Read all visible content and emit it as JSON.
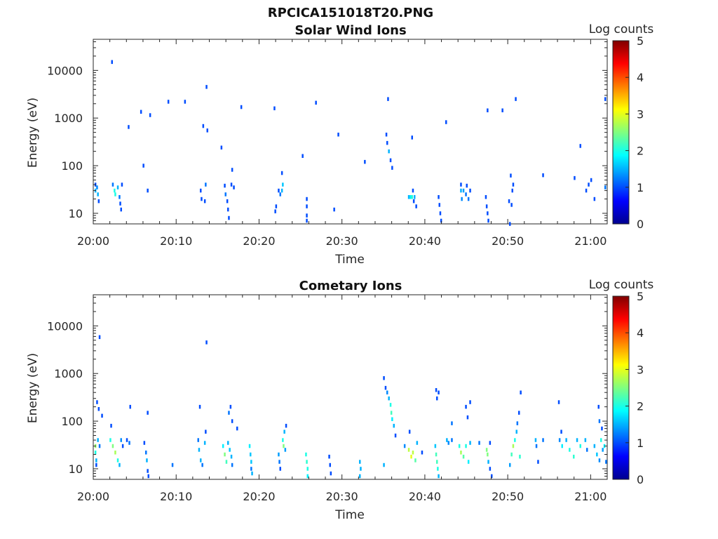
{
  "figure": {
    "title": "RPCICA151018T20.PNG"
  },
  "chart_data": [
    {
      "type": "heatmap",
      "title": "Solar Wind Ions",
      "xlabel": "Time",
      "ylabel": "Energy (eV)",
      "x_ticks": [
        "20:00",
        "20:10",
        "20:20",
        "20:30",
        "20:40",
        "20:50",
        "21:00"
      ],
      "xlim": [
        "20:00",
        "21:02"
      ],
      "y_scale": "log",
      "y_ticks": [
        10,
        100,
        1000,
        10000
      ],
      "ylim": [
        6,
        45000
      ],
      "colorbar": {
        "label": "Log counts",
        "ticks": [
          0,
          1,
          2,
          3,
          4,
          5
        ],
        "colormap": "jet"
      },
      "cells": [
        [
          "20:00.2",
          40,
          1
        ],
        [
          "20:00.2",
          30,
          1.5
        ],
        [
          "20:00.5",
          25,
          1.5
        ],
        [
          "20:00.6",
          18,
          1
        ],
        [
          "20:00.4",
          35,
          1.3
        ],
        [
          "20:02.3",
          40,
          1.2
        ],
        [
          "20:02.5",
          30,
          2
        ],
        [
          "20:02.6",
          25,
          2
        ],
        [
          "20:02.9",
          35,
          1.5
        ],
        [
          "20:03.1",
          22,
          1.2
        ],
        [
          "20:03.2",
          16,
          1
        ],
        [
          "20:03.3",
          12,
          1
        ],
        [
          "20:03.4",
          40,
          1
        ],
        [
          "20:06.5",
          30,
          1
        ],
        [
          "20:12.9",
          30,
          1
        ],
        [
          "20:13.0",
          20,
          1
        ],
        [
          "20:13.4",
          18,
          1
        ],
        [
          "20:13.5",
          40,
          1.2
        ],
        [
          "20:15.8",
          38,
          1
        ],
        [
          "20:15.9",
          25,
          1.2
        ],
        [
          "20:16.1",
          18,
          1
        ],
        [
          "20:16.2",
          12,
          1
        ],
        [
          "20:16.3",
          8,
          1
        ],
        [
          "20:16.6",
          40,
          1
        ],
        [
          "20:16.9",
          35,
          1
        ],
        [
          "20:22.3",
          30,
          1
        ],
        [
          "20:22.5",
          25,
          1.2
        ],
        [
          "20:22.7",
          30,
          1.5
        ],
        [
          "20:22.8",
          40,
          1.6
        ],
        [
          "20:22.0",
          14,
          1
        ],
        [
          "20:21.9",
          11,
          1
        ],
        [
          "20:25.7",
          20,
          1
        ],
        [
          "20:25.7",
          14,
          1
        ],
        [
          "20:25.7",
          9,
          1
        ],
        [
          "20:25.7",
          7,
          1
        ],
        [
          "20:29.0",
          12,
          1
        ],
        [
          "20:38.0",
          22,
          1.5
        ],
        [
          "20:38.2",
          22,
          1.8
        ],
        [
          "20:38.4",
          22,
          2.1
        ],
        [
          "20:38.7",
          22,
          1.5
        ],
        [
          "20:38.9",
          14,
          1
        ],
        [
          "20:38.5",
          30,
          1
        ],
        [
          "20:38.6",
          18,
          1
        ],
        [
          "20:41.6",
          22,
          1
        ],
        [
          "20:41.7",
          15,
          1
        ],
        [
          "20:41.8",
          10,
          1
        ],
        [
          "20:41.9",
          7,
          1
        ],
        [
          "20:44.3",
          40,
          1
        ],
        [
          "20:44.3",
          30,
          1.5
        ],
        [
          "20:44.4",
          20,
          1.3
        ],
        [
          "20:44.6",
          30,
          1.4
        ],
        [
          "20:44.9",
          25,
          1.2
        ],
        [
          "20:45.0",
          38,
          1
        ],
        [
          "20:45.2",
          20,
          1.2
        ],
        [
          "20:45.4",
          30,
          1
        ],
        [
          "20:47.3",
          22,
          1
        ],
        [
          "20:47.4",
          14,
          1
        ],
        [
          "20:47.5",
          10,
          1
        ],
        [
          "20:47.6",
          7,
          1
        ],
        [
          "20:50.1",
          18,
          1
        ],
        [
          "20:50.5",
          30,
          1
        ],
        [
          "20:50.6",
          40,
          1
        ],
        [
          "20:50.4",
          15,
          1
        ],
        [
          "20:59.4",
          30,
          1
        ],
        [
          "20:59.7",
          40,
          1
        ],
        [
          "21:00.4",
          20,
          1
        ],
        [
          "21:01.7",
          35,
          1.2
        ],
        [
          "20:02.2",
          15000,
          1
        ],
        [
          "20:05.7",
          1350,
          1
        ],
        [
          "20:06.8",
          1150,
          1
        ],
        [
          "20:09.0",
          2200,
          1
        ],
        [
          "20:11.0",
          2200,
          1
        ],
        [
          "20:13.6",
          4500,
          1
        ],
        [
          "20:17.8",
          1700,
          1
        ],
        [
          "20:21.8",
          1600,
          1
        ],
        [
          "20:26.8",
          2100,
          1
        ],
        [
          "20:35.5",
          2500,
          1
        ],
        [
          "20:42.5",
          820,
          1
        ],
        [
          "20:47.5",
          1450,
          1
        ],
        [
          "20:49.3",
          1450,
          1
        ],
        [
          "20:50.9",
          2500,
          1
        ],
        [
          "21:01.7",
          2500,
          1
        ],
        [
          "20:04.2",
          650,
          1
        ],
        [
          "20:13.2",
          680,
          1
        ],
        [
          "20:13.7",
          550,
          1
        ],
        [
          "20:29.5",
          450,
          1
        ],
        [
          "20:35.3",
          450,
          1
        ],
        [
          "20:38.4",
          390,
          1
        ],
        [
          "20:35.4",
          300,
          1
        ],
        [
          "20:35.6",
          200,
          1.5
        ],
        [
          "20:35.8",
          130,
          1
        ],
        [
          "20:36.0",
          90,
          1
        ],
        [
          "20:15.4",
          240,
          1
        ],
        [
          "20:25.2",
          160,
          1
        ],
        [
          "20:32.7",
          120,
          1
        ],
        [
          "20:06.0",
          100,
          1
        ],
        [
          "20:16.7",
          82,
          1
        ],
        [
          "20:22.7",
          70,
          1
        ],
        [
          "20:50.3",
          62,
          1
        ],
        [
          "20:54.2",
          63,
          1
        ],
        [
          "20:58.0",
          55,
          1
        ],
        [
          "21:00.0",
          50,
          1
        ],
        [
          "20:58.7",
          260,
          1
        ],
        [
          "20:50.2",
          6,
          1
        ]
      ]
    },
    {
      "type": "heatmap",
      "title": "Cometary Ions",
      "xlabel": "Time",
      "ylabel": "Energy (eV)",
      "x_ticks": [
        "20:00",
        "20:10",
        "20:20",
        "20:30",
        "20:40",
        "20:50",
        "21:00"
      ],
      "xlim": [
        "20:00",
        "21:02"
      ],
      "y_scale": "log",
      "y_ticks": [
        10,
        100,
        1000,
        10000
      ],
      "ylim": [
        6,
        45000
      ],
      "colorbar": {
        "label": "Log counts",
        "ticks": [
          0,
          1,
          2,
          3,
          4,
          5
        ],
        "colormap": "jet"
      },
      "cells": [
        [
          "20:00.2",
          30,
          2.6
        ],
        [
          "20:00.2",
          22,
          2
        ],
        [
          "20:00.3",
          15,
          1.5
        ],
        [
          "20:00.3",
          12,
          1
        ],
        [
          "20:00.5",
          40,
          1.5
        ],
        [
          "20:00.7",
          30,
          1.2
        ],
        [
          "20:00.4",
          250,
          1
        ],
        [
          "20:00.6",
          180,
          1
        ],
        [
          "20:01.0",
          130,
          1
        ],
        [
          "20:02.0",
          40,
          2
        ],
        [
          "20:02.3",
          30,
          2.5
        ],
        [
          "20:02.6",
          22,
          2.7
        ],
        [
          "20:02.9",
          15,
          2
        ],
        [
          "20:03.1",
          12,
          1.5
        ],
        [
          "20:03.3",
          40,
          1.3
        ],
        [
          "20:03.5",
          30,
          1
        ],
        [
          "20:04.0",
          40,
          1
        ],
        [
          "20:04.3",
          35,
          1.2
        ],
        [
          "20:04.4",
          200,
          1
        ],
        [
          "20:06.1",
          35,
          1
        ],
        [
          "20:06.3",
          22,
          1.2
        ],
        [
          "20:06.4",
          15,
          1.5
        ],
        [
          "20:06.5",
          9,
          1
        ],
        [
          "20:06.6",
          7,
          1
        ],
        [
          "20:06.5",
          150,
          1
        ],
        [
          "20:02.1",
          80,
          1
        ],
        [
          "20:00.7",
          5800,
          1
        ],
        [
          "20:13.6",
          4500,
          1
        ],
        [
          "20:09.5",
          12,
          1.2
        ],
        [
          "20:12.6",
          40,
          1.2
        ],
        [
          "20:12.7",
          25,
          1.5
        ],
        [
          "20:12.9",
          15,
          1.5
        ],
        [
          "20:13.1",
          12,
          1.2
        ],
        [
          "20:13.4",
          35,
          1.5
        ],
        [
          "20:13.5",
          60,
          1
        ],
        [
          "20:12.8",
          200,
          1
        ],
        [
          "20:15.6",
          30,
          1.8
        ],
        [
          "20:15.8",
          20,
          2.5
        ],
        [
          "20:16.0",
          14,
          2.2
        ],
        [
          "20:16.2",
          35,
          1.5
        ],
        [
          "20:16.4",
          25,
          1.6
        ],
        [
          "20:16.6",
          18,
          1.5
        ],
        [
          "20:16.7",
          12,
          1.2
        ],
        [
          "20:16.3",
          150,
          1.2
        ],
        [
          "20:16.5",
          200,
          1
        ],
        [
          "20:16.7",
          100,
          1
        ],
        [
          "20:17.3",
          70,
          1
        ],
        [
          "20:18.8",
          30,
          1.8
        ],
        [
          "20:18.9",
          20,
          1.6
        ],
        [
          "20:19.0",
          14,
          1.6
        ],
        [
          "20:19.0",
          10,
          1.2
        ],
        [
          "20:19.1",
          8,
          1.5
        ],
        [
          "20:22.3",
          20,
          1.4
        ],
        [
          "20:22.4",
          14,
          1.2
        ],
        [
          "20:22.5",
          10,
          1
        ],
        [
          "20:22.8",
          40,
          2
        ],
        [
          "20:22.9",
          30,
          2.5
        ],
        [
          "20:23.0",
          60,
          1.5
        ],
        [
          "20:23.1",
          25,
          1.4
        ],
        [
          "20:23.2",
          80,
          1
        ],
        [
          "20:25.6",
          20,
          2
        ],
        [
          "20:25.7",
          14,
          2.1
        ],
        [
          "20:25.8",
          10,
          2
        ],
        [
          "20:25.8",
          7,
          1.8
        ],
        [
          "20:28.4",
          18,
          1
        ],
        [
          "20:28.5",
          12,
          1
        ],
        [
          "20:28.6",
          8,
          1
        ],
        [
          "20:32.1",
          14,
          1.5
        ],
        [
          "20:32.2",
          10,
          1.5
        ],
        [
          "20:32.1",
          7,
          1.5
        ],
        [
          "20:35.0",
          800,
          1
        ],
        [
          "20:35.2",
          500,
          1
        ],
        [
          "20:35.4",
          400,
          1.3
        ],
        [
          "20:35.6",
          300,
          1.5
        ],
        [
          "20:35.8",
          220,
          2
        ],
        [
          "20:35.9",
          150,
          2.2
        ],
        [
          "20:36.0",
          110,
          1.8
        ],
        [
          "20:36.2",
          80,
          1.5
        ],
        [
          "20:36.4",
          50,
          1
        ],
        [
          "20:35.0",
          12,
          1.5
        ],
        [
          "20:37.5",
          30,
          1.3
        ],
        [
          "20:38.0",
          25,
          2.8
        ],
        [
          "20:38.3",
          18,
          3
        ],
        [
          "20:38.5",
          22,
          2.8
        ],
        [
          "20:38.8",
          15,
          2.3
        ],
        [
          "20:39.0",
          35,
          1.5
        ],
        [
          "20:38.1",
          60,
          1
        ],
        [
          "20:39.6",
          22,
          1
        ],
        [
          "20:41.2",
          30,
          1.6
        ],
        [
          "20:41.3",
          20,
          2.2
        ],
        [
          "20:41.4",
          14,
          2.2
        ],
        [
          "20:41.5",
          10,
          2
        ],
        [
          "20:41.6",
          7,
          1.5
        ],
        [
          "20:41.3",
          450,
          1
        ],
        [
          "20:41.6",
          400,
          1
        ],
        [
          "20:41.4",
          300,
          1
        ],
        [
          "20:42.6",
          40,
          1.5
        ],
        [
          "20:42.8",
          35,
          1.3
        ],
        [
          "20:43.2",
          40,
          1.2
        ],
        [
          "20:44.1",
          30,
          2
        ],
        [
          "20:44.3",
          22,
          2.7
        ],
        [
          "20:44.6",
          18,
          2.3
        ],
        [
          "20:44.9",
          30,
          2
        ],
        [
          "20:45.2",
          14,
          1.8
        ],
        [
          "20:45.4",
          35,
          1.5
        ],
        [
          "20:44.9",
          200,
          1
        ],
        [
          "20:45.1",
          120,
          1
        ],
        [
          "20:43.2",
          90,
          1.2
        ],
        [
          "20:45.4",
          250,
          1
        ],
        [
          "20:46.5",
          35,
          1.2
        ],
        [
          "20:47.4",
          25,
          2.5
        ],
        [
          "20:47.5",
          20,
          2.5
        ],
        [
          "20:47.6",
          14,
          1.5
        ],
        [
          "20:47.8",
          10,
          1
        ],
        [
          "20:47.8",
          35,
          1
        ],
        [
          "20:48.0",
          7,
          1
        ],
        [
          "20:50.2",
          12,
          1.4
        ],
        [
          "20:50.4",
          20,
          2.2
        ],
        [
          "20:50.6",
          30,
          2.7
        ],
        [
          "20:50.8",
          40,
          2
        ],
        [
          "20:51.0",
          60,
          1.5
        ],
        [
          "20:51.1",
          90,
          1.2
        ],
        [
          "20:51.3",
          150,
          1
        ],
        [
          "20:51.5",
          400,
          1
        ],
        [
          "20:51.4",
          18,
          2.1
        ],
        [
          "20:53.3",
          40,
          1.5
        ],
        [
          "20:53.4",
          30,
          1.2
        ],
        [
          "20:53.6",
          14,
          1
        ],
        [
          "20:54.2",
          40,
          1.2
        ],
        [
          "20:56.2",
          40,
          1.3
        ],
        [
          "20:56.5",
          30,
          1.8
        ],
        [
          "20:57.0",
          40,
          1.5
        ],
        [
          "20:57.4",
          25,
          2
        ],
        [
          "20:57.9",
          18,
          2.1
        ],
        [
          "20:58.3",
          40,
          1.5
        ],
        [
          "20:58.7",
          30,
          2
        ],
        [
          "20:59.3",
          40,
          1.5
        ],
        [
          "20:59.5",
          25,
          1.2
        ],
        [
          "20:56.4",
          60,
          1
        ],
        [
          "20:56.1",
          250,
          1
        ],
        [
          "21:00.4",
          30,
          1.5
        ],
        [
          "21:00.7",
          20,
          1.6
        ],
        [
          "21:01.0",
          15,
          1.3
        ],
        [
          "21:01.2",
          40,
          2
        ],
        [
          "21:01.4",
          25,
          1.4
        ],
        [
          "21:01.6",
          30,
          1.8
        ],
        [
          "21:01.8",
          14,
          1.2
        ],
        [
          "21:01.0",
          100,
          1.2
        ],
        [
          "21:00.9",
          200,
          1
        ],
        [
          "21:01.3",
          70,
          1
        ]
      ]
    }
  ]
}
